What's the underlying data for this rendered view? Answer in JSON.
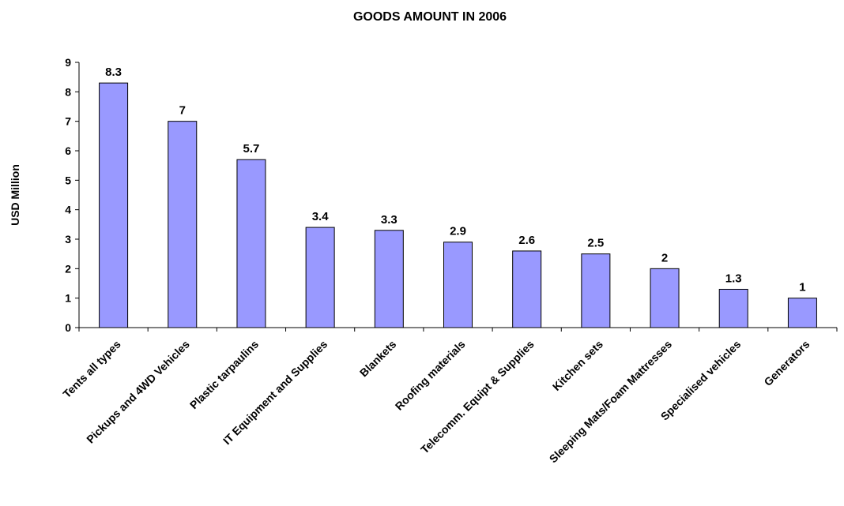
{
  "chart_data": {
    "type": "bar",
    "title": "GOODS AMOUNT IN 2006",
    "xlabel": "",
    "ylabel": "USD Million",
    "ylim": [
      0,
      9
    ],
    "yticks": [
      0,
      1,
      2,
      3,
      4,
      5,
      6,
      7,
      8,
      9
    ],
    "grid": false,
    "legend": "none",
    "bar_color": "#9999ff",
    "bar_edge_color": "#000000",
    "categories": [
      "Tents all types",
      "Pickups and 4WD Vehicles",
      "Plastic tarpaulins",
      "IT Equipment and Supplies",
      "Blankets",
      "Roofing materials",
      "Telecomm. Equipt  & Supplies",
      "Kitchen sets",
      "Sleeping Mats/Foam Mattresses",
      "Specialised vehicles",
      "Generators"
    ],
    "values": [
      8.3,
      7,
      5.7,
      3.4,
      3.3,
      2.9,
      2.6,
      2.5,
      2,
      1.3,
      1
    ],
    "data_labels": [
      "8.3",
      "7",
      "5.7",
      "3.4",
      "3.3",
      "2.9",
      "2.6",
      "2.5",
      "2",
      "1.3",
      "1"
    ]
  }
}
